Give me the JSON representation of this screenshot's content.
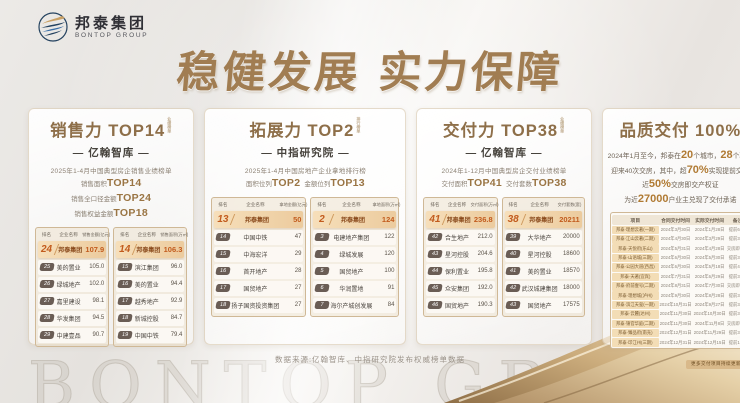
{
  "logo": {
    "cn": "邦泰集团",
    "en": "BONTOP GROUP"
  },
  "title": "稳健发展 实力保障",
  "watermark": "BONTOP GROUP",
  "source_note": "数据来源:亿翰智库、中指研究院发布权威榜单数据",
  "colors": {
    "accent_bronze": "#9a7544",
    "highlight_orange": "#c25b1d",
    "highlight_row": "#f2d6ae",
    "chip_dark": "#6a5d55",
    "brand_gold": "#c9a063"
  },
  "cards": [
    {
      "title": "销售力 TOP14",
      "title_note": "业绩榜单",
      "org": "— 亿翰智库 —",
      "desc": "2025年1-4月中国典型房企销售业绩榜单",
      "stats": [
        {
          "label": "销售面积",
          "value": "TOP14"
        },
        {
          "label": "销售全口径金额",
          "value": "TOP24"
        },
        {
          "label": "销售权益金额",
          "value": "TOP18"
        }
      ],
      "tables": [
        {
          "headers": [
            "排名",
            "企业名称",
            "销售金额(亿元)"
          ],
          "rows": [
            [
              "24",
              "邦泰集团",
              "107.9",
              true
            ],
            [
              "25",
              "美的置业",
              "105.0",
              false
            ],
            [
              "26",
              "绿城地产",
              "102.0",
              false
            ],
            [
              "27",
              "嘉里建设",
              "98.1",
              false
            ],
            [
              "28",
              "华发集团",
              "94.5",
              false
            ],
            [
              "29",
              "中建壹品",
              "90.7",
              false
            ]
          ]
        },
        {
          "headers": [
            "排名",
            "企业名称",
            "销售面积(万㎡)"
          ],
          "rows": [
            [
              "14",
              "邦泰集团",
              "106.3",
              true
            ],
            [
              "15",
              "滨江集团",
              "96.0",
              false
            ],
            [
              "16",
              "美的置业",
              "94.4",
              false
            ],
            [
              "17",
              "越秀地产",
              "92.9",
              false
            ],
            [
              "18",
              "新城控股",
              "84.7",
              false
            ],
            [
              "19",
              "中国中铁",
              "79.4",
              false
            ]
          ]
        }
      ]
    },
    {
      "title": "拓展力 TOP2",
      "title_note": "排行榜单",
      "org": "— 中指研究院 —",
      "desc": "2025年1-4月中国房地产企业拿地排行榜",
      "stats": [
        {
          "label": "面积位列",
          "value": "TOP2"
        },
        {
          "label": "金额位列",
          "value": "TOP13"
        }
      ],
      "tables": [
        {
          "headers": [
            "排名",
            "企业名称",
            "拿地金额(亿元)"
          ],
          "rows": [
            [
              "13",
              "邦泰集团",
              "50",
              true
            ],
            [
              "14",
              "中国中铁",
              "47",
              false
            ],
            [
              "15",
              "中海宏洋",
              "29",
              false
            ],
            [
              "16",
              "首开地产",
              "28",
              false
            ],
            [
              "17",
              "国贸地产",
              "27",
              false
            ],
            [
              "18",
              "扬子国资投资集团",
              "27",
              false
            ]
          ]
        },
        {
          "headers": [
            "排名",
            "企业名称",
            "拿地面积(万㎡)"
          ],
          "rows": [
            [
              "2",
              "邦泰集团",
              "124",
              true
            ],
            [
              "3",
              "电建地产集团",
              "122",
              false
            ],
            [
              "4",
              "绿城发展",
              "120",
              false
            ],
            [
              "5",
              "国贸地产",
              "100",
              false
            ],
            [
              "6",
              "华润置地",
              "91",
              false
            ],
            [
              "7",
              "海尔产城创发展",
              "84",
              false
            ]
          ]
        }
      ]
    },
    {
      "title": "交付力 TOP38",
      "title_note": "业绩榜单",
      "org": "— 亿翰智库 —",
      "desc": "2024年1-12月中国典型房企交付业绩榜单",
      "stats": [
        {
          "label": "交付面积",
          "value": "TOP41"
        },
        {
          "label": "交付套数",
          "value": "TOP38"
        }
      ],
      "tables": [
        {
          "headers": [
            "排名",
            "企业名称",
            "交付面积(万㎡)"
          ],
          "rows": [
            [
              "41",
              "邦泰集团",
              "236.8",
              true
            ],
            [
              "42",
              "合生地产",
              "212.0",
              false
            ],
            [
              "43",
              "星河控股",
              "204.6",
              false
            ],
            [
              "44",
              "保利置业",
              "195.8",
              false
            ],
            [
              "45",
              "众安集团",
              "192.0",
              false
            ],
            [
              "46",
              "国贸地产",
              "190.3",
              false
            ]
          ]
        },
        {
          "headers": [
            "排名",
            "企业名称",
            "交付套数(套)"
          ],
          "rows": [
            [
              "38",
              "邦泰集团",
              "20211",
              true
            ],
            [
              "39",
              "大华地产",
              "20000",
              false
            ],
            [
              "40",
              "星河控股",
              "18600",
              false
            ],
            [
              "41",
              "美的置业",
              "18570",
              false
            ],
            [
              "42",
              "武汉城建集团",
              "18000",
              false
            ],
            [
              "43",
              "国贸地产",
              "17575",
              false
            ]
          ]
        }
      ]
    },
    {
      "title": "品质交付 100%",
      "lines": [
        [
          {
            "t": "2024年1月至今，邦泰在"
          },
          {
            "t": "20",
            "h": true
          },
          {
            "t": "个城市，"
          },
          {
            "t": "28",
            "h": true
          },
          {
            "t": "个项目"
          }
        ],
        [
          {
            "t": "迎来40次交房，其中，超"
          },
          {
            "t": "70%",
            "h": true
          },
          {
            "t": "实现提前交付"
          }
        ],
        [
          {
            "t": "近"
          },
          {
            "t": "50%",
            "h": true
          },
          {
            "t": "交房即交产权证"
          }
        ],
        [
          {
            "t": "为近"
          },
          {
            "t": "27000",
            "h": true
          },
          {
            "t": "户业主兑现了交付承诺"
          }
        ]
      ],
      "delivery_table": {
        "headers": [
          "项目",
          "合同交付时间",
          "实际交付时间",
          "备注"
        ],
        "rows": [
          [
            "邦泰·理想云著(一期)",
            "2024年3月30日",
            "2024年1月28日",
            "提前62天"
          ],
          [
            "邦泰·江山云著(二期)",
            "2024年4月30日",
            "2024年3月29日",
            "提前32天"
          ],
          [
            "邦泰·天悦府(乐山)",
            "2024年5月31日",
            "2024年4月28日",
            "交房即交证"
          ],
          [
            "邦泰·山语城(三期)",
            "2024年6月30日",
            "2024年5月30日",
            "提前31天"
          ],
          [
            "邦泰·公园大道(西昌)",
            "2024年6月30日",
            "2024年5月18日",
            "提前43天"
          ],
          [
            "邦泰·天著(宜宾)",
            "2024年7月31日",
            "2024年6月29日",
            "提前32天"
          ],
          [
            "邦泰·府前壹号(二期)",
            "2024年8月31日",
            "2024年7月30日",
            "交房即交证"
          ],
          [
            "邦泰·理想城(泸州)",
            "2024年9月30日",
            "2024年8月28日",
            "提前33天"
          ],
          [
            "邦泰·滨江天玺(一期)",
            "2024年10月31日",
            "2024年9月27日",
            "提前34天"
          ],
          [
            "邦泰·云麓(达州)",
            "2024年11月30日",
            "2024年10月30日",
            "提前31天"
          ],
          [
            "邦泰·锦官华庭(二期)",
            "2024年11月30日",
            "2024年11月8日",
            "交房即交证"
          ],
          [
            "邦泰·臻品府(南充)",
            "2024年12月31日",
            "2024年11月29日",
            "提前32天"
          ],
          [
            "邦泰·印江州(三期)",
            "2024年12月31日",
            "2024年12月15日",
            "提前16天"
          ]
        ]
      },
      "table_note": "更多交付项目持续更新中"
    }
  ]
}
